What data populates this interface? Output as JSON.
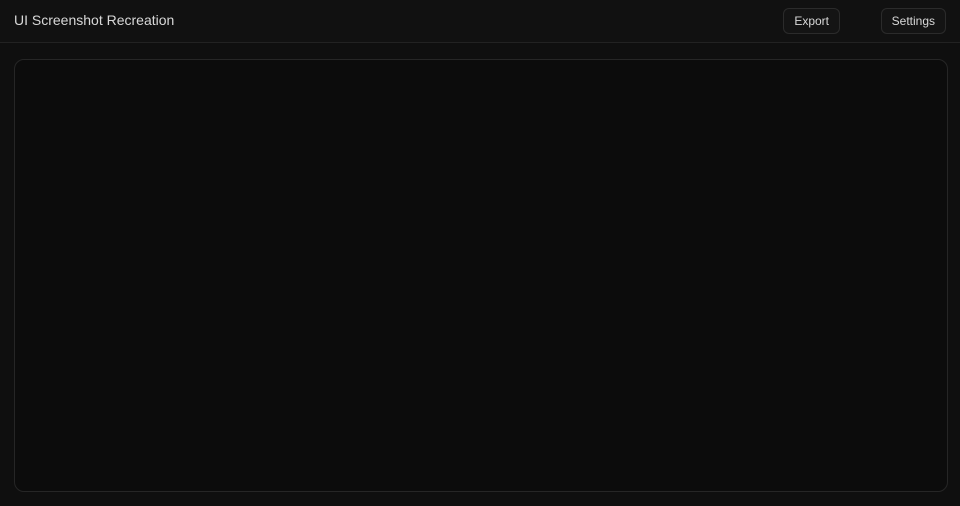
{
  "app": {
    "title": "UI Screenshot Recreation",
    "actions": {
      "export_label": "Export",
      "settings_label": "Settings"
    }
  },
  "content": {
    "header": "",
    "rows": [
      {
        "label": "",
        "value": ""
      },
      {
        "label": "",
        "value": ""
      }
    ]
  }
}
